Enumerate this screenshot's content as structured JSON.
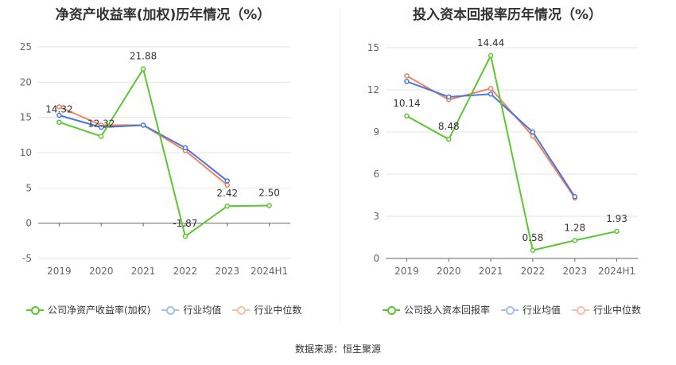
{
  "chart_data": [
    {
      "type": "line",
      "title": "净资产收益率(加权)历年情况（%）",
      "categories": [
        "2019",
        "2020",
        "2021",
        "2022",
        "2023",
        "2024H1"
      ],
      "ylim": [
        -5,
        25
      ],
      "yticks": [
        -5,
        0,
        5,
        10,
        15,
        20,
        25
      ],
      "grid": true,
      "legend_position": "bottom",
      "series": [
        {
          "name": "公司净资产收益率(加权)",
          "color": "#5cc631",
          "values": [
            14.32,
            12.32,
            21.88,
            -1.87,
            2.42,
            2.5
          ],
          "labels": [
            "14.32",
            "12.32",
            "21.88",
            "-1.87",
            "2.42",
            "2.50"
          ]
        },
        {
          "name": "行业均值",
          "color": "#4a76e0",
          "values": [
            15.3,
            13.6,
            13.9,
            10.7,
            6.0,
            null
          ]
        },
        {
          "name": "行业中位数",
          "color": "#f0845e",
          "values": [
            16.5,
            13.9,
            13.9,
            10.3,
            5.4,
            null
          ]
        }
      ]
    },
    {
      "type": "line",
      "title": "投入资本回报率历年情况（%）",
      "categories": [
        "2019",
        "2020",
        "2021",
        "2022",
        "2023",
        "2024H1"
      ],
      "ylim": [
        0,
        15
      ],
      "yticks": [
        0,
        3,
        6,
        9,
        12,
        15
      ],
      "grid": true,
      "legend_position": "bottom",
      "series": [
        {
          "name": "公司投入资本回报率",
          "color": "#5cc631",
          "values": [
            10.14,
            8.48,
            14.44,
            0.58,
            1.28,
            1.93
          ],
          "labels": [
            "10.14",
            "8.48",
            "14.44",
            "0.58",
            "1.28",
            "1.93"
          ]
        },
        {
          "name": "行业均值",
          "color": "#4a76e0",
          "values": [
            12.6,
            11.5,
            11.7,
            9.0,
            4.4,
            null
          ]
        },
        {
          "name": "行业中位数",
          "color": "#f0845e",
          "values": [
            13.0,
            11.3,
            12.1,
            8.7,
            4.3,
            null
          ]
        }
      ]
    }
  ],
  "footer": {
    "source": "数据来源：恒生聚源"
  }
}
